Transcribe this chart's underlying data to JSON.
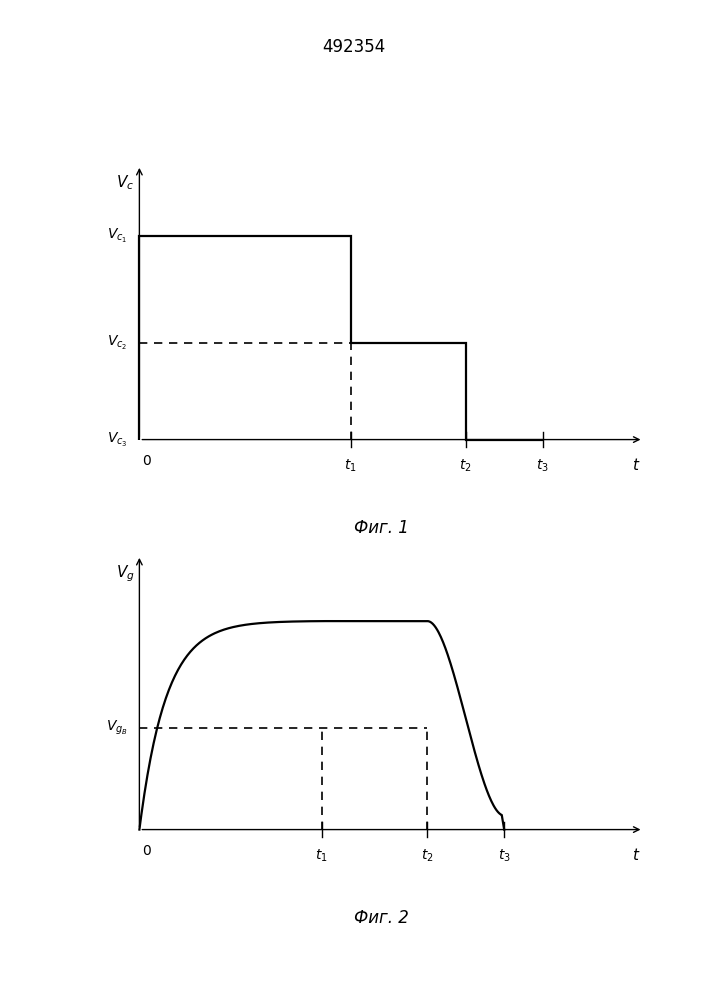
{
  "title": "492354",
  "title_fontsize": 12,
  "fig1_caption": "Фиг. 1",
  "fig2_caption": "Фиг. 2",
  "caption_fontsize": 12,
  "background_color": "#ffffff",
  "line_color": "#000000",
  "dashed_color": "#000000",
  "fig1": {
    "Vc1": 0.8,
    "Vc2": 0.38,
    "t1": 0.44,
    "t2": 0.68,
    "t3": 0.84,
    "xlim": [
      -0.04,
      1.05
    ],
    "ylim": [
      -0.1,
      1.08
    ]
  },
  "fig2": {
    "Vgb": 0.4,
    "t1": 0.38,
    "t2": 0.6,
    "t3": 0.76,
    "y_max": 0.82,
    "xlim": [
      -0.04,
      1.05
    ],
    "ylim": [
      -0.1,
      1.08
    ]
  }
}
